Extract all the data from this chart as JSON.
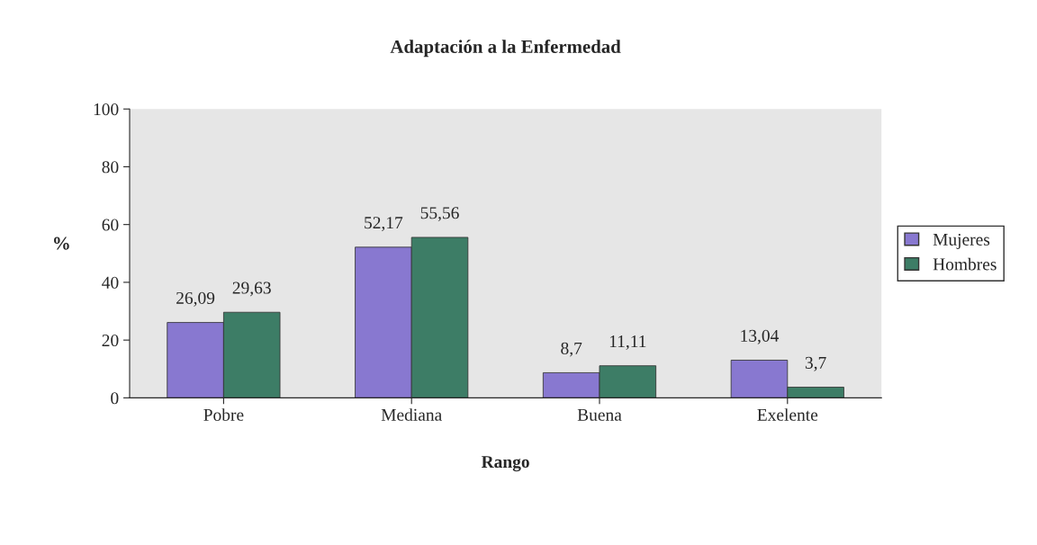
{
  "chart_data": {
    "type": "bar",
    "title": "Adaptación a la Enfermedad",
    "xlabel": "Rango",
    "ylabel": "%",
    "categories": [
      "Pobre",
      "Mediana",
      "Buena",
      "Exelente"
    ],
    "series": [
      {
        "name": "Mujeres",
        "color": "#8878d0",
        "values": [
          26.09,
          52.17,
          8.7,
          13.04
        ],
        "value_labels": [
          "26,09",
          "52,17",
          "8,7",
          "13,04"
        ]
      },
      {
        "name": "Hombres",
        "color": "#3d7d66",
        "values": [
          29.63,
          55.56,
          11.11,
          3.7
        ],
        "value_labels": [
          "29,63",
          "55,56",
          "11,11",
          "3,7"
        ]
      }
    ],
    "ylim": [
      0,
      100
    ],
    "yticks": [
      0,
      20,
      40,
      60,
      80,
      100
    ],
    "grid": false,
    "legend": "right"
  }
}
